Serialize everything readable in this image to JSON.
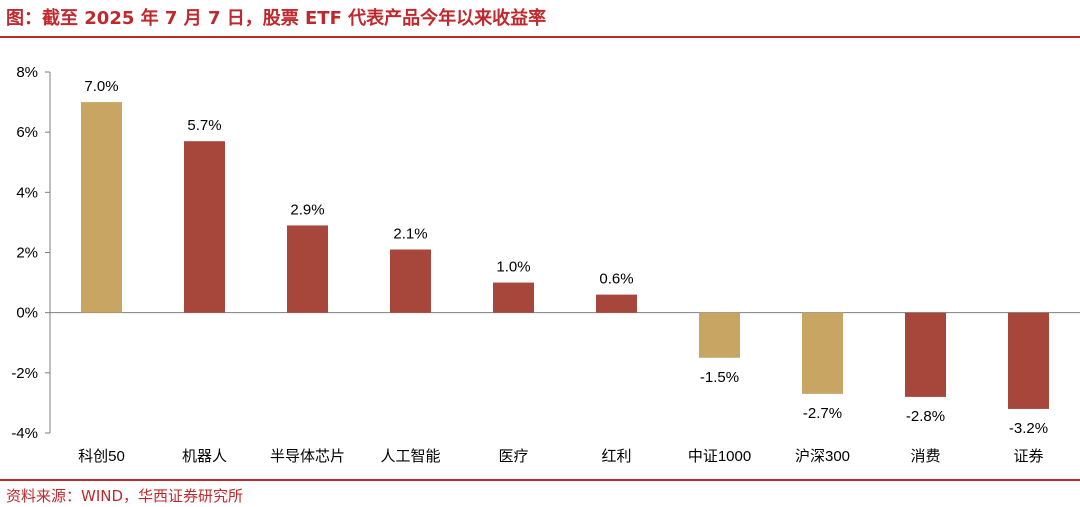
{
  "header": {
    "title": "图：截至 2025 年 7 月 7 日，股票 ETF 代表产品今年以来收益率"
  },
  "footer": {
    "source": "资料来源：WIND，华西证券研究所"
  },
  "colors": {
    "accent": "#c0282d",
    "gold": "#c9a564",
    "red": "#a7473b"
  },
  "chart_data": {
    "type": "bar",
    "title": "",
    "xlabel": "",
    "ylabel": "",
    "categories": [
      "科创50",
      "机器人",
      "半导体芯片",
      "人工智能",
      "医疗",
      "红利",
      "中证1000",
      "沪深300",
      "消费",
      "证券"
    ],
    "values": [
      7.0,
      5.7,
      2.9,
      2.1,
      1.0,
      0.6,
      -1.5,
      -2.7,
      -2.8,
      -3.2
    ],
    "value_labels": [
      "7.0%",
      "5.7%",
      "2.9%",
      "2.1%",
      "1.0%",
      "0.6%",
      "-1.5%",
      "-2.7%",
      "-2.8%",
      "-3.2%"
    ],
    "bar_colors": [
      "gold",
      "red",
      "red",
      "red",
      "red",
      "red",
      "gold",
      "gold",
      "red",
      "red"
    ],
    "ylim": [
      -4,
      8
    ],
    "yticks": [
      -4,
      -2,
      0,
      2,
      4,
      6,
      8
    ],
    "ytick_labels": [
      "-4%",
      "-2%",
      "0%",
      "2%",
      "4%",
      "6%",
      "8%"
    ],
    "grid": false,
    "legend": "none"
  }
}
